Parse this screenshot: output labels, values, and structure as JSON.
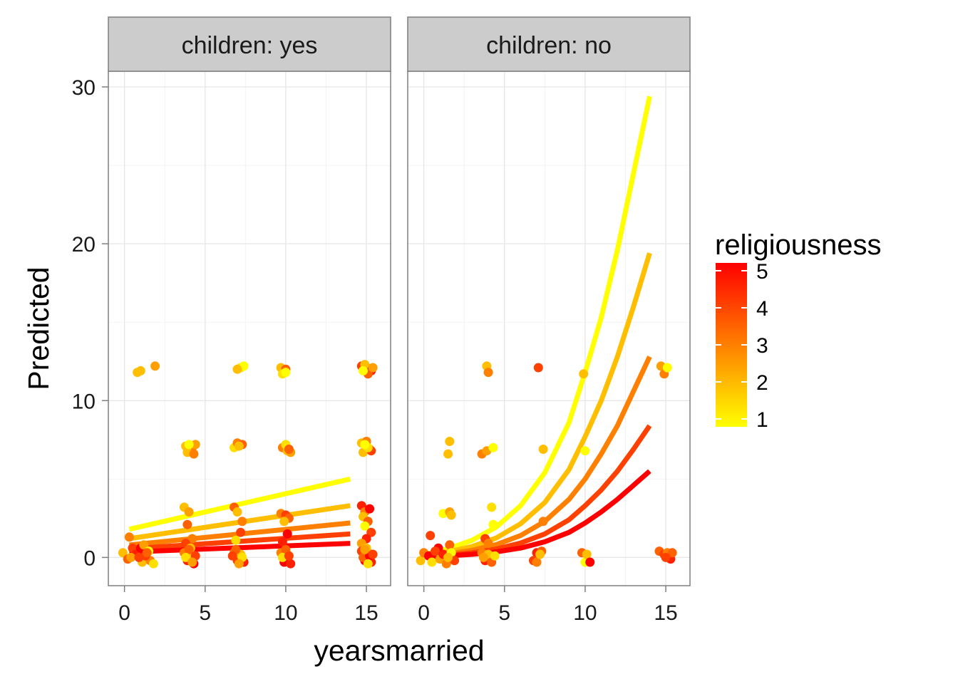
{
  "chart_data": {
    "type": "scatter",
    "xlabel": "yearsmarried",
    "ylabel": "Predicted",
    "xlim": [
      -1,
      16.5
    ],
    "ylim": [
      -1.8,
      31
    ],
    "x_ticks": [
      0,
      5,
      10,
      15
    ],
    "y_ticks": [
      0,
      10,
      20,
      30
    ],
    "x_tick_labels": [
      "0",
      "5",
      "10",
      "15"
    ],
    "y_tick_labels": [
      "0",
      "10",
      "20",
      "30"
    ],
    "grid": true,
    "legend": {
      "title": "religiousness",
      "type": "colorbar",
      "placement": "right",
      "ticks": [
        1,
        2,
        3,
        4,
        5
      ],
      "tick_labels": [
        "1",
        "2",
        "3",
        "4",
        "5"
      ],
      "range": [
        1,
        5
      ],
      "colors": {
        "low": "#ffff00",
        "high": "#ff0000"
      }
    },
    "panels": [
      {
        "strip": "children: yes",
        "lines": [
          {
            "religiousness": 1,
            "x": [
              0.3,
              14
            ],
            "y": [
              1.8,
              5.0
            ]
          },
          {
            "religiousness": 2,
            "x": [
              0.3,
              14
            ],
            "y": [
              1.2,
              3.3
            ]
          },
          {
            "religiousness": 3,
            "x": [
              0.3,
              14
            ],
            "y": [
              0.8,
              2.2
            ]
          },
          {
            "religiousness": 4,
            "x": [
              0.3,
              14
            ],
            "y": [
              0.55,
              1.5
            ]
          },
          {
            "religiousness": 5,
            "x": [
              0.3,
              14
            ],
            "y": [
              0.35,
              0.9
            ]
          }
        ],
        "points": [
          [
            1.0,
            11.9,
            2
          ],
          [
            0.8,
            11.8,
            2
          ],
          [
            1.9,
            12.2,
            2.5
          ],
          [
            7.2,
            12.1,
            1.5
          ],
          [
            7.4,
            12.2,
            1
          ],
          [
            7.0,
            12.0,
            2
          ],
          [
            9.7,
            12.1,
            2
          ],
          [
            10.0,
            12.0,
            3.5
          ],
          [
            9.8,
            11.7,
            1.5
          ],
          [
            10.0,
            11.8,
            1
          ],
          [
            14.7,
            12.2,
            4
          ],
          [
            15.0,
            12.1,
            5
          ],
          [
            15.2,
            12.0,
            3
          ],
          [
            14.9,
            12.3,
            2
          ],
          [
            15.3,
            11.9,
            4.5
          ],
          [
            15.1,
            11.7,
            3.5
          ],
          [
            14.8,
            11.9,
            1
          ],
          [
            15.4,
            12.1,
            2.5
          ],
          [
            3.8,
            7.1,
            2
          ],
          [
            4.2,
            7.0,
            3
          ],
          [
            3.9,
            6.7,
            2
          ],
          [
            4.4,
            7.2,
            2.5
          ],
          [
            4.3,
            6.6,
            3
          ],
          [
            4.0,
            7.2,
            1
          ],
          [
            6.8,
            7.0,
            1.5
          ],
          [
            7.0,
            7.3,
            3
          ],
          [
            7.3,
            7.2,
            3.5
          ],
          [
            7.1,
            7.1,
            2
          ],
          [
            9.8,
            7.0,
            3
          ],
          [
            10.1,
            6.8,
            2
          ],
          [
            10.3,
            6.7,
            2.5
          ],
          [
            10.0,
            7.2,
            1.5
          ],
          [
            10.2,
            6.9,
            3.5
          ],
          [
            14.7,
            7.3,
            2
          ],
          [
            15.0,
            7.4,
            3
          ],
          [
            15.2,
            6.9,
            3.5
          ],
          [
            14.8,
            6.7,
            2
          ],
          [
            15.3,
            6.8,
            4
          ],
          [
            15.1,
            7.0,
            1.5
          ],
          [
            14.9,
            7.2,
            1
          ],
          [
            3.7,
            3.2,
            2
          ],
          [
            4.0,
            2.9,
            2.5
          ],
          [
            3.9,
            2.1,
            3.5
          ],
          [
            4.2,
            1.2,
            3
          ],
          [
            3.8,
            0.9,
            4
          ],
          [
            4.1,
            0.6,
            2
          ],
          [
            6.8,
            3.2,
            3.5
          ],
          [
            7.0,
            2.9,
            2
          ],
          [
            7.3,
            2.3,
            3
          ],
          [
            7.2,
            1.6,
            4
          ],
          [
            6.9,
            1.1,
            1.5
          ],
          [
            9.7,
            2.8,
            3
          ],
          [
            10.0,
            2.7,
            4
          ],
          [
            10.2,
            2.5,
            3.5
          ],
          [
            9.9,
            2.3,
            2
          ],
          [
            10.1,
            1.5,
            5
          ],
          [
            9.8,
            1.0,
            4.5
          ],
          [
            14.7,
            3.3,
            4.5
          ],
          [
            14.9,
            2.9,
            3
          ],
          [
            15.2,
            3.1,
            5
          ],
          [
            14.8,
            2.6,
            2
          ],
          [
            15.1,
            2.3,
            3.5
          ],
          [
            14.9,
            2.0,
            1
          ],
          [
            15.3,
            1.6,
            4
          ],
          [
            15.0,
            1.2,
            4.5
          ],
          [
            14.7,
            0.9,
            2.5
          ],
          [
            -0.1,
            0.3,
            2
          ],
          [
            0.3,
            1.3,
            3
          ],
          [
            0.5,
            0.6,
            4
          ],
          [
            0.2,
            -0.1,
            3.5
          ],
          [
            0.7,
            0.2,
            4.5
          ],
          [
            0.4,
            0.0,
            2.5
          ],
          [
            1.0,
            0.6,
            5
          ],
          [
            1.2,
            0.8,
            2.5
          ],
          [
            1.5,
            0.4,
            1
          ],
          [
            1.1,
            -0.3,
            2
          ],
          [
            1.6,
            -0.2,
            3
          ],
          [
            1.3,
            0.1,
            4
          ],
          [
            1.8,
            -0.4,
            1.5
          ],
          [
            1.4,
            0.3,
            3.5
          ],
          [
            0.9,
            0.0,
            4
          ],
          [
            3.7,
            0.3,
            3
          ],
          [
            3.9,
            -0.2,
            4.5
          ],
          [
            4.1,
            0.2,
            2
          ],
          [
            4.3,
            -0.4,
            5
          ],
          [
            4.0,
            0.5,
            3.5
          ],
          [
            3.8,
            0.0,
            1.5
          ],
          [
            4.4,
            0.1,
            4
          ],
          [
            4.2,
            -0.3,
            2.5
          ],
          [
            6.8,
            0.3,
            3
          ],
          [
            7.0,
            -0.2,
            4
          ],
          [
            7.2,
            0.2,
            2
          ],
          [
            7.4,
            -0.3,
            4.5
          ],
          [
            6.9,
            0.5,
            3.5
          ],
          [
            7.3,
            0.0,
            1.5
          ],
          [
            7.1,
            -0.4,
            2.5
          ],
          [
            6.7,
            0.1,
            4
          ],
          [
            9.7,
            0.3,
            3
          ],
          [
            9.9,
            -0.3,
            5
          ],
          [
            10.1,
            0.2,
            2
          ],
          [
            10.3,
            -0.4,
            4.5
          ],
          [
            10.0,
            0.5,
            3.5
          ],
          [
            9.8,
            0.0,
            1.5
          ],
          [
            10.2,
            0.1,
            4
          ],
          [
            14.7,
            0.4,
            4
          ],
          [
            14.9,
            -0.2,
            5
          ],
          [
            15.1,
            0.3,
            3
          ],
          [
            15.3,
            -0.3,
            4.5
          ],
          [
            15.0,
            0.6,
            2
          ],
          [
            14.8,
            0.0,
            3.5
          ],
          [
            15.2,
            0.1,
            5
          ],
          [
            14.9,
            0.5,
            2.5
          ],
          [
            15.4,
            0.2,
            4
          ],
          [
            15.1,
            -0.4,
            1.5
          ]
        ]
      },
      {
        "strip": "children: no",
        "lines": [
          {
            "religiousness": 1,
            "x": [
              0.3,
              1.5,
              3,
              4.5,
              6,
              7.5,
              9,
              10,
              11,
              12,
              13,
              14
            ],
            "y": [
              0.25,
              0.55,
              1.1,
              1.95,
              3.3,
              5.4,
              8.6,
              11.8,
              15.3,
              19.6,
              24.5,
              29.4
            ]
          },
          {
            "religiousness": 2,
            "x": [
              0.3,
              1.5,
              3,
              4.5,
              6,
              7.5,
              9,
              10,
              11,
              12,
              13,
              14
            ],
            "y": [
              0.17,
              0.36,
              0.7,
              1.25,
              2.15,
              3.5,
              5.6,
              7.7,
              10.0,
              12.8,
              16.0,
              19.4
            ]
          },
          {
            "religiousness": 3,
            "x": [
              0.3,
              1.5,
              3,
              4.5,
              6,
              7.5,
              9,
              10,
              11,
              12,
              13,
              14
            ],
            "y": [
              0.11,
              0.23,
              0.46,
              0.82,
              1.4,
              2.3,
              3.7,
              5.0,
              6.6,
              8.4,
              10.6,
              12.8
            ]
          },
          {
            "religiousness": 4,
            "x": [
              0.3,
              1.5,
              3,
              4.5,
              6,
              7.5,
              9,
              10,
              11,
              12,
              13,
              14
            ],
            "y": [
              0.07,
              0.15,
              0.3,
              0.54,
              0.92,
              1.5,
              2.4,
              3.3,
              4.3,
              5.5,
              6.9,
              8.4
            ]
          },
          {
            "religiousness": 5,
            "x": [
              0.3,
              1.5,
              3,
              4.5,
              6,
              7.5,
              9,
              10,
              11,
              12,
              13,
              14
            ],
            "y": [
              0.05,
              0.1,
              0.2,
              0.36,
              0.6,
              1.0,
              1.6,
              2.2,
              2.9,
              3.7,
              4.6,
              5.5
            ]
          }
        ],
        "points": [
          [
            3.9,
            12.2,
            2
          ],
          [
            4.0,
            11.8,
            3
          ],
          [
            7.1,
            12.1,
            4
          ],
          [
            9.9,
            11.7,
            2
          ],
          [
            14.7,
            12.2,
            2.5
          ],
          [
            14.9,
            11.7,
            3
          ],
          [
            15.1,
            12.1,
            1
          ],
          [
            1.6,
            7.4,
            2
          ],
          [
            1.5,
            6.6,
            2
          ],
          [
            3.6,
            6.6,
            3
          ],
          [
            3.9,
            6.8,
            2.5
          ],
          [
            4.3,
            7.0,
            1
          ],
          [
            7.4,
            6.9,
            2
          ],
          [
            10.0,
            6.8,
            1
          ],
          [
            1.2,
            2.8,
            1
          ],
          [
            1.6,
            2.9,
            2.5
          ],
          [
            1.7,
            2.7,
            2
          ],
          [
            4.2,
            3.2,
            1.5
          ],
          [
            4.3,
            2.1,
            1
          ],
          [
            7.4,
            2.3,
            3
          ],
          [
            0.4,
            1.4,
            4
          ],
          [
            1.6,
            0.8,
            3.5
          ],
          [
            0.9,
            0.6,
            5
          ],
          [
            3.8,
            1.2,
            4
          ],
          [
            4.0,
            0.9,
            3
          ],
          [
            7.0,
            0.3,
            4.5
          ],
          [
            7.3,
            0.4,
            3.5
          ],
          [
            -0.2,
            -0.2,
            2
          ],
          [
            0.0,
            0.3,
            3
          ],
          [
            0.3,
            0.1,
            5
          ],
          [
            0.5,
            -0.3,
            1.5
          ],
          [
            0.7,
            0.4,
            4
          ],
          [
            1.0,
            -0.1,
            2.5
          ],
          [
            1.2,
            0.2,
            4.5
          ],
          [
            1.4,
            -0.4,
            3
          ],
          [
            1.7,
            0.3,
            1
          ],
          [
            1.9,
            -0.2,
            4
          ],
          [
            1.5,
            0.0,
            2
          ],
          [
            3.6,
            0.3,
            3
          ],
          [
            3.8,
            -0.2,
            4.5
          ],
          [
            4.0,
            0.2,
            2
          ],
          [
            4.2,
            -0.3,
            3.5
          ],
          [
            4.4,
            0.1,
            1.5
          ],
          [
            3.7,
            0.0,
            2.5
          ],
          [
            6.8,
            -0.2,
            4
          ],
          [
            7.0,
            -0.3,
            3
          ],
          [
            7.2,
            0.2,
            2
          ],
          [
            9.8,
            0.3,
            3.5
          ],
          [
            10.0,
            -0.3,
            1
          ],
          [
            10.1,
            0.2,
            2
          ],
          [
            10.3,
            -0.3,
            5
          ],
          [
            14.6,
            0.4,
            3.5
          ],
          [
            14.9,
            0.2,
            4
          ],
          [
            15.1,
            0.3,
            3
          ],
          [
            15.3,
            -0.1,
            4.5
          ],
          [
            15.4,
            0.3,
            3.5
          ],
          [
            15.0,
            0.0,
            4
          ]
        ]
      }
    ]
  }
}
